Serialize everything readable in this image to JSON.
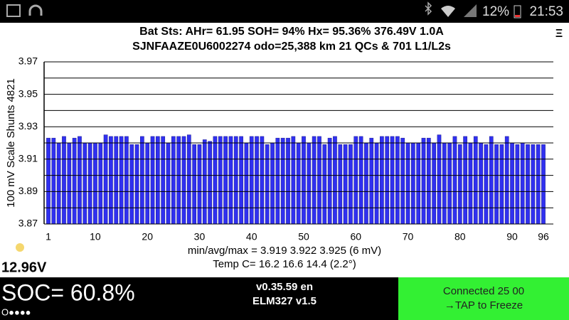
{
  "status_bar": {
    "battery": "12%",
    "time": "21:53"
  },
  "header": {
    "line1": "Bat Sts:  AHr= 61.95  SOH= 94%   Hx= 95.36%   376.49V 1.0A",
    "line2": "SJNFAAZE0U6002274 odo=25,388 km  21 QCs  &  701 L1/L2s",
    "menu": "Ξ"
  },
  "chart_data": {
    "type": "bar",
    "y_label": "100 mV Scale   Shunts 4821",
    "color": "#3030f0",
    "categories": [
      1,
      null,
      null,
      null,
      null,
      null,
      null,
      null,
      null,
      10,
      null,
      null,
      null,
      null,
      null,
      null,
      null,
      null,
      null,
      20,
      null,
      null,
      null,
      null,
      null,
      null,
      null,
      null,
      null,
      30,
      null,
      null,
      null,
      null,
      null,
      null,
      null,
      null,
      null,
      40,
      null,
      null,
      null,
      null,
      null,
      null,
      null,
      null,
      null,
      50,
      null,
      null,
      null,
      null,
      null,
      null,
      null,
      null,
      null,
      60,
      null,
      null,
      null,
      null,
      null,
      null,
      null,
      null,
      null,
      70,
      null,
      null,
      null,
      null,
      null,
      null,
      null,
      null,
      null,
      80,
      null,
      null,
      null,
      null,
      null,
      null,
      null,
      null,
      null,
      90,
      null,
      null,
      null,
      null,
      null,
      96
    ],
    "values": [
      3.923,
      3.923,
      3.92,
      3.924,
      3.92,
      3.923,
      3.924,
      3.92,
      3.92,
      3.92,
      3.92,
      3.925,
      3.924,
      3.924,
      3.924,
      3.924,
      3.919,
      3.919,
      3.924,
      3.92,
      3.924,
      3.924,
      3.924,
      3.92,
      3.924,
      3.924,
      3.924,
      3.925,
      3.919,
      3.919,
      3.922,
      3.921,
      3.924,
      3.924,
      3.924,
      3.924,
      3.924,
      3.924,
      3.92,
      3.924,
      3.924,
      3.924,
      3.919,
      3.92,
      3.923,
      3.923,
      3.923,
      3.924,
      3.92,
      3.924,
      3.92,
      3.924,
      3.924,
      3.919,
      3.923,
      3.924,
      3.919,
      3.919,
      3.919,
      3.924,
      3.924,
      3.92,
      3.923,
      3.92,
      3.924,
      3.924,
      3.924,
      3.924,
      3.923,
      3.92,
      3.92,
      3.92,
      3.923,
      3.923,
      3.92,
      3.925,
      3.92,
      3.92,
      3.924,
      3.919,
      3.924,
      3.92,
      3.924,
      3.92,
      3.919,
      3.924,
      3.919,
      3.919,
      3.924,
      3.92,
      3.919,
      3.92,
      3.919,
      3.919,
      3.919,
      3.919
    ],
    "ylim": [
      3.87,
      3.97
    ],
    "yticks": [
      3.87,
      3.89,
      3.91,
      3.93,
      3.95,
      3.97
    ],
    "minor_gridlines": [
      3.88,
      3.9,
      3.92,
      3.94,
      3.96
    ],
    "grid": true
  },
  "stats": {
    "minmax": "min/avg/max = 3.919 3.922 3.925  (6 mV)",
    "temp": "Temp C= 16.2  16.6  14.4  (2.2°)",
    "voltage": "12.96V"
  },
  "footer": {
    "soc": "SOC= 60.8%",
    "dots": "O●●●●",
    "version": "v0.35.59 en",
    "adapter": "ELM327 v1.5",
    "connected": "Connected 25 00",
    "action": "→TAP to Freeze"
  }
}
